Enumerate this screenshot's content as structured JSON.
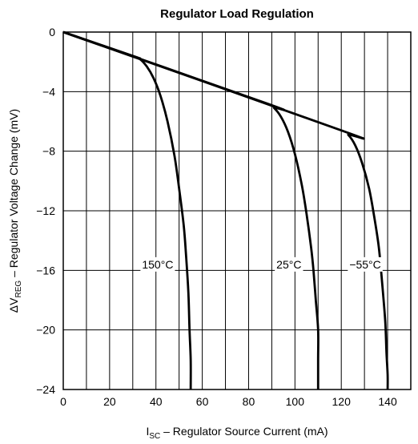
{
  "chart_data": {
    "type": "line",
    "title": "Regulator Load Regulation",
    "xlabel": {
      "pre": "I",
      "sub": "SC",
      "post": " – Regulator Source Current (mA)"
    },
    "ylabel": {
      "pre": "ΔV",
      "sub": "REG",
      "post": " – Regulator Voltage Change (mV)"
    },
    "xlim": [
      0,
      150
    ],
    "ylim": [
      -24,
      0
    ],
    "x_ticks": [
      0,
      20,
      40,
      60,
      80,
      100,
      120,
      140
    ],
    "x_tick_labels": [
      "0",
      "20",
      "40",
      "60",
      "80",
      "100",
      "120",
      "140"
    ],
    "y_ticks": [
      0,
      -4,
      -8,
      -12,
      -16,
      -20,
      -24
    ],
    "y_tick_labels": [
      "0",
      "−4",
      "−8",
      "−12",
      "−16",
      "−20",
      "−24"
    ],
    "grid": true,
    "series": [
      {
        "name": "150°C",
        "x": [
          0,
          30,
          33,
          36,
          39,
          42,
          45,
          48,
          50,
          52,
          53,
          54,
          54.5,
          55,
          55
        ],
        "y": [
          0,
          -1.6,
          -1.8,
          -2.3,
          -3.1,
          -4.3,
          -6.0,
          -8.3,
          -10.5,
          -13.0,
          -15.0,
          -17.5,
          -20.0,
          -22.0,
          -24.0
        ]
      },
      {
        "name": "25°C",
        "x": [
          0,
          88,
          91,
          94,
          97,
          100,
          103,
          105,
          107,
          108,
          109,
          110,
          110,
          110
        ],
        "y": [
          0,
          -4.8,
          -5.1,
          -5.7,
          -6.7,
          -8.2,
          -10.3,
          -12.2,
          -14.5,
          -16.0,
          -18.0,
          -20.0,
          -22.0,
          -24.0
        ]
      },
      {
        "name": "−55°C",
        "x": [
          0,
          120,
          123,
          126,
          129,
          132,
          134,
          136,
          137,
          138,
          139,
          139.5,
          140,
          140
        ],
        "y": [
          0,
          -6.6,
          -6.9,
          -7.6,
          -8.8,
          -10.5,
          -12.2,
          -14.2,
          -15.7,
          -17.5,
          -19.5,
          -21.5,
          -23.0,
          -24.0
        ]
      }
    ],
    "annotations": [
      {
        "text": "150°C",
        "x": 34,
        "y": -15.6
      },
      {
        "text": "25°C",
        "x": 92,
        "y": -15.6
      },
      {
        "text": "−55°C",
        "x": 123.5,
        "y": -15.6
      }
    ]
  }
}
